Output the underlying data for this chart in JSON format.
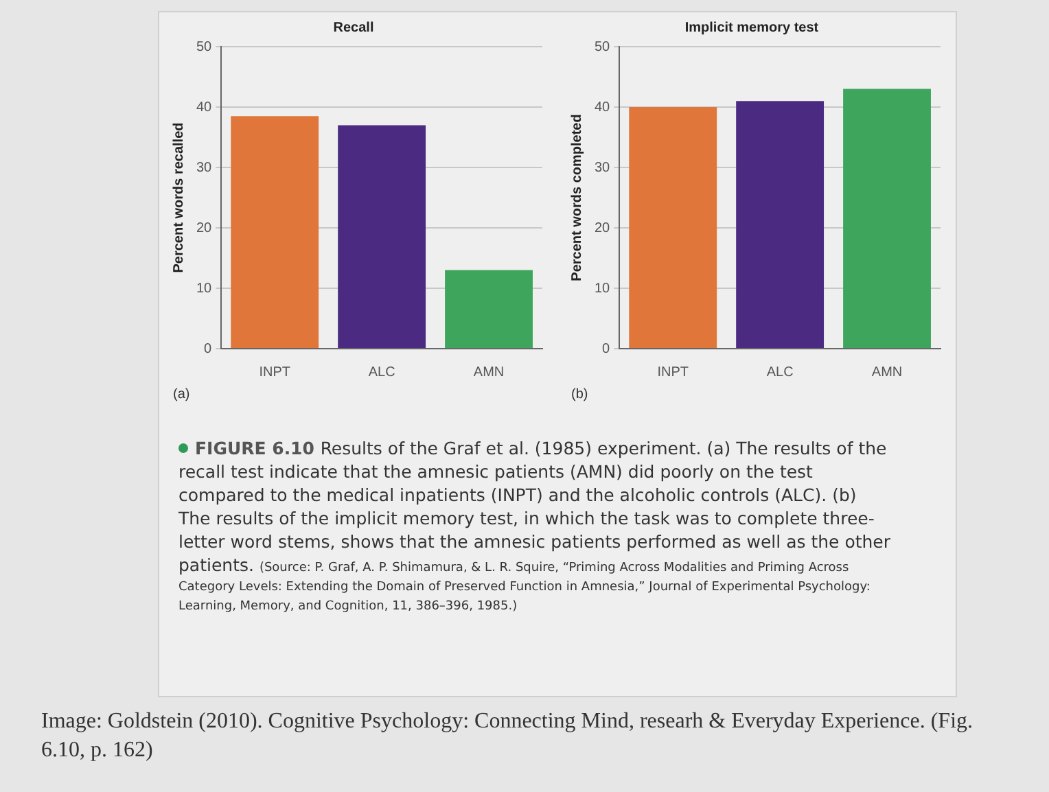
{
  "chart_data": [
    {
      "type": "bar",
      "title": "Recall",
      "ylabel": "Percent words recalled",
      "categories": [
        "INPT",
        "ALC",
        "AMN"
      ],
      "values": [
        38.5,
        37,
        13
      ],
      "colors": [
        "#e0763a",
        "#4b2a82",
        "#3ea55c"
      ],
      "ylim": [
        0,
        50
      ],
      "yticks": [
        0,
        10,
        20,
        30,
        40,
        50
      ],
      "grid": "y",
      "legend": false,
      "annotations": [
        "(a)"
      ]
    },
    {
      "type": "bar",
      "title": "Implicit memory test",
      "ylabel": "Percent words completed",
      "categories": [
        "INPT",
        "ALC",
        "AMN"
      ],
      "values": [
        40,
        41,
        43
      ],
      "colors": [
        "#e0763a",
        "#4b2a82",
        "#3ea55c"
      ],
      "ylim": [
        0,
        50
      ],
      "yticks": [
        0,
        10,
        20,
        30,
        40,
        50
      ],
      "grid": "y",
      "legend": false,
      "annotations": [
        "(b)"
      ]
    },
    {
      "type": "other",
      "annotations": [
        "FIGURE 6.10",
        "Results of the Graf et al. (1985) experiment. (a) The results of the recall test indicate that the amnesic patients (AMN) did poorly on the test compared to the medical inpatients (INPT) and the alcoholic controls (ALC). (b) The results of the implicit memory test, in which the task was to complete three-letter word stems, shows that the amnesic patients performed as well as the other patients.",
        "(Source: P. Graf, A. P. Shimamura, & L. R. Squire, “Priming Across Modalities and Priming Across Category Levels: Extending the Domain of Preserved Function in Amnesia,” Journal of Experimental Psychology: Learning, Memory, and Cognition, 11, 386–396, 1985.)",
        "Image: Goldstein (2010). Cognitive Psychology: Connecting Mind, researh & Everyday Experience. (Fig. 6.10, p. 162)"
      ]
    }
  ]
}
